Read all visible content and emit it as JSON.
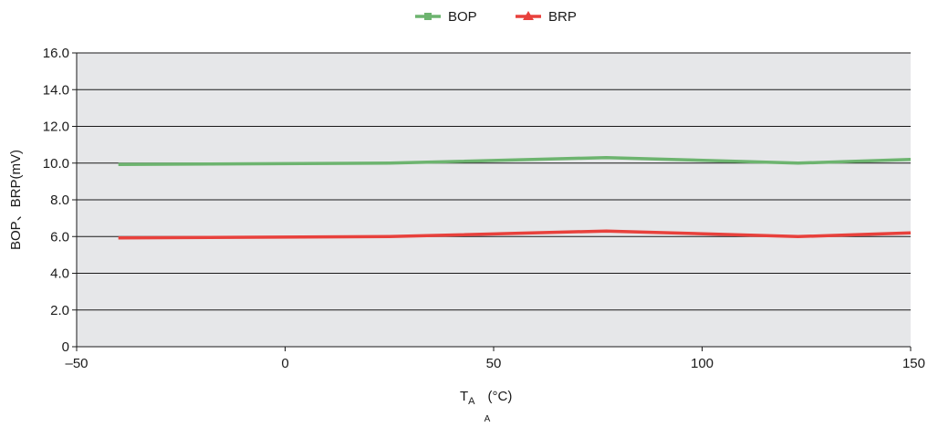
{
  "chart_data": {
    "type": "line",
    "title": "",
    "xlabel": "T",
    "xlabel_sub": "A",
    "xlabel_unit": "(°C)",
    "xlabel_note": "A",
    "ylabel": "BOP、BRP(mV)",
    "xlim": [
      -50,
      150
    ],
    "ylim": [
      0,
      16
    ],
    "x_ticks": [
      -50,
      0,
      50,
      100,
      150
    ],
    "x_tick_labels": [
      "–50",
      "0",
      "50",
      "100",
      "150"
    ],
    "y_ticks": [
      0,
      2,
      4,
      6,
      8,
      10,
      12,
      14,
      16
    ],
    "y_tick_labels": [
      "0",
      "2.0",
      "4.0",
      "6.0",
      "8.0",
      "10.0",
      "12.0",
      "14.0",
      "16.0"
    ],
    "grid": "horizontal",
    "legend_position": "top-center",
    "background_color": "#e6e7e9",
    "series": [
      {
        "name": "BOP",
        "color": "#6db46f",
        "marker": "square",
        "x": [
          -40,
          25,
          77,
          123,
          150
        ],
        "y": [
          9.93,
          10.0,
          10.3,
          10.0,
          10.2
        ]
      },
      {
        "name": "BRP",
        "color": "#e8413c",
        "marker": "triangle",
        "x": [
          -40,
          25,
          77,
          123,
          150
        ],
        "y": [
          5.93,
          6.0,
          6.3,
          6.0,
          6.2
        ]
      }
    ]
  }
}
